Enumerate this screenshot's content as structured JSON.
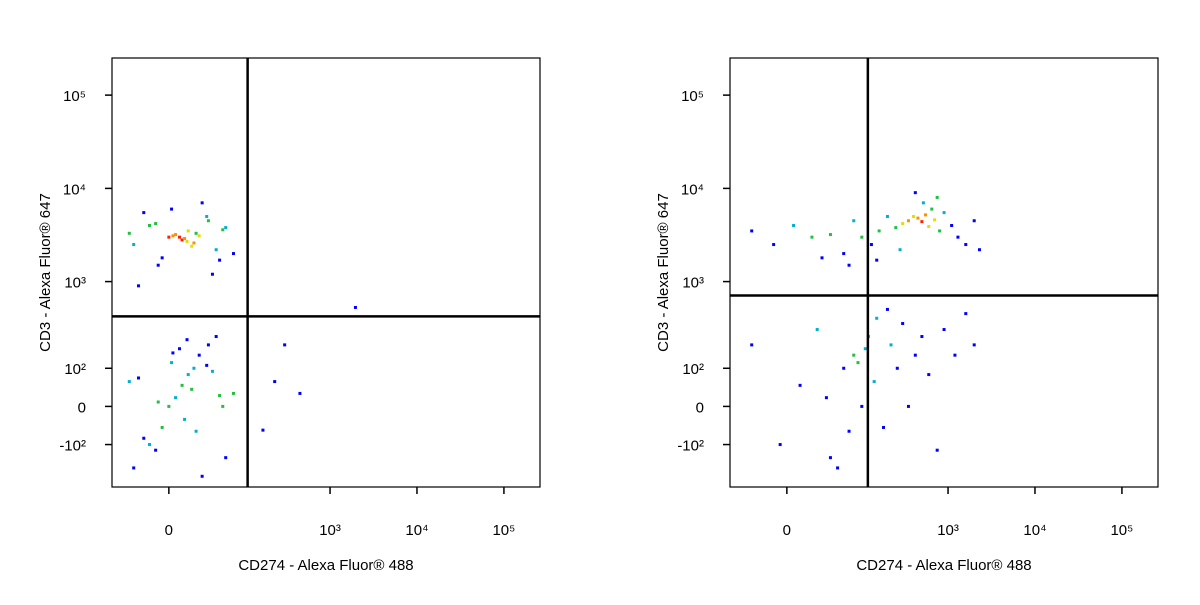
{
  "chart_data": [
    {
      "type": "scatter",
      "xlabel": "CD274 - Alexa Fluor® 488",
      "ylabel": "CD3 - Alexa Fluor® 647",
      "xscale": "biexponential",
      "yscale": "biexponential",
      "xlim": [
        -60,
        260000
      ],
      "ylim": [
        -330,
        250000
      ],
      "xticks": [
        0,
        {
          "value": 1000,
          "label": "10³"
        },
        {
          "value": 10000,
          "label": "10⁴"
        },
        {
          "value": 100000,
          "label": "10⁵"
        }
      ],
      "yticks": [
        {
          "value": 100000,
          "label": "10⁵"
        },
        {
          "value": 10000,
          "label": "10⁴"
        },
        {
          "value": 1000,
          "label": "10³"
        },
        {
          "value": 100,
          "label": "10²"
        },
        0,
        {
          "value": -100,
          "label": "-10²"
        }
      ],
      "quadrant_gate": {
        "x": 111,
        "y": 419
      },
      "x": [
        -30,
        -15,
        -5,
        0,
        5,
        10,
        15,
        20,
        25,
        35,
        45,
        60,
        75,
        -35,
        -20,
        -8,
        2,
        8,
        12,
        18,
        28,
        40,
        55,
        -25,
        -10,
        3,
        14,
        22,
        33,
        50,
        -30,
        -15,
        -5,
        0,
        5,
        10,
        15,
        20,
        25,
        35,
        45,
        60,
        75,
        -35,
        -20,
        -8,
        2,
        8,
        12,
        18,
        28,
        40,
        55,
        -25,
        -10,
        3,
        14,
        22,
        33,
        50,
        168,
        230,
        300,
        450,
        1960
      ],
      "values": [
        2500,
        4000,
        1800,
        3000,
        3200,
        2800,
        3500,
        2600,
        3100,
        4500,
        2200,
        3800,
        2000,
        3300,
        5500,
        1500,
        6000,
        3000,
        2900,
        2400,
        7000,
        1200,
        3600,
        900,
        4200,
        3100,
        2700,
        3300,
        5000,
        1700,
        -200,
        -100,
        -50,
        0,
        20,
        50,
        80,
        100,
        150,
        200,
        250,
        -150,
        30,
        60,
        -80,
        10,
        120,
        180,
        -30,
        40,
        -250,
        90,
        0,
        70,
        -120,
        160,
        230,
        -60,
        110,
        25,
        -57,
        60,
        200,
        30,
        525
      ],
      "colors": [
        "#00b0d0",
        "#20c040",
        "#0000ff",
        "#ff2000",
        "#ff9000",
        "#ff2000",
        "#e0e000",
        "#ff9000",
        "#e0e000",
        "#20c040",
        "#00b0d0",
        "#00b0d0",
        "#0000ff",
        "#20c040",
        "#0000ff",
        "#0000ff",
        "#0000ff",
        "#ff2000",
        "#ff9000",
        "#e0e000",
        "#0000ff",
        "#0000ff",
        "#20c040",
        "#0000ff",
        "#20c040",
        "#ff9000",
        "#e0e000",
        "#20c040",
        "#00b0d0",
        "#0000ff",
        "#0000ff",
        "#00b0d0",
        "#20c040",
        "#20c040",
        "#00b0d0",
        "#20c040",
        "#00b0d0",
        "#00b0d0",
        "#0000ff",
        "#0000ff",
        "#0000ff",
        "#0000ff",
        "#20c040",
        "#00b0d0",
        "#0000ff",
        "#20c040",
        "#00b0d0",
        "#0000ff",
        "#00b0d0",
        "#20c040",
        "#0000ff",
        "#00b0d0",
        "#20c040",
        "#0000ff",
        "#0000ff",
        "#0000ff",
        "#0000ff",
        "#00b0d0",
        "#0000ff",
        "#20c040",
        "#0000ff",
        "#0000ff",
        "#0000ff",
        "#0000ff",
        "#0000ff"
      ]
    },
    {
      "type": "scatter",
      "xlabel": "CD274 - Alexa Fluor® 488",
      "ylabel": "CD3 - Alexa Fluor® 647",
      "xscale": "biexponential",
      "yscale": "biexponential",
      "xlim": [
        -60,
        260000
      ],
      "ylim": [
        -330,
        250000
      ],
      "xticks": [
        0,
        {
          "value": 1000,
          "label": "10³"
        },
        {
          "value": 10000,
          "label": "10⁴"
        },
        {
          "value": 100000,
          "label": "10⁵"
        }
      ],
      "yticks": [
        {
          "value": 100000,
          "label": "10⁵"
        },
        {
          "value": 10000,
          "label": "10⁴"
        },
        {
          "value": 1000,
          "label": "10³"
        },
        {
          "value": 100,
          "label": "10²"
        },
        0,
        {
          "value": -100,
          "label": "-10²"
        }
      ],
      "quadrant_gate": {
        "x": 118,
        "y": 709
      },
      "x": [
        -30,
        -10,
        5,
        20,
        40,
        60,
        80,
        100,
        130,
        160,
        200,
        250,
        300,
        350,
        400,
        450,
        500,
        550,
        600,
        650,
        700,
        800,
        900,
        1100,
        1300,
        1600,
        2000,
        2300,
        30,
        70,
        150,
        280,
        420,
        520,
        750,
        -30,
        -5,
        10,
        25,
        40,
        60,
        80,
        100,
        120,
        150,
        180,
        220,
        260,
        300,
        350,
        420,
        500,
        600,
        750,
        900,
        1200,
        1600,
        2000,
        50,
        90,
        140,
        70,
        35,
        110,
        200
      ],
      "values": [
        3500,
        2500,
        4000,
        3000,
        3200,
        2000,
        4500,
        3000,
        2500,
        3500,
        5000,
        3800,
        4200,
        4500,
        5000,
        4800,
        4400,
        5200,
        3900,
        6000,
        4600,
        3500,
        5500,
        4000,
        3000,
        2500,
        4500,
        2200,
        1800,
        1500,
        1700,
        2200,
        9000,
        7000,
        8000,
        200,
        -100,
        50,
        300,
        -150,
        100,
        150,
        0,
        250,
        400,
        -50,
        200,
        100,
        350,
        0,
        150,
        250,
        80,
        -120,
        300,
        150,
        450,
        200,
        -200,
        120,
        60,
        -60,
        20,
        180,
        500
      ],
      "colors": [
        "#0000ff",
        "#0000ff",
        "#00b0d0",
        "#20c040",
        "#20c040",
        "#0000ff",
        "#00b0d0",
        "#20c040",
        "#0000ff",
        "#20c040",
        "#00b0d0",
        "#20c040",
        "#e0e000",
        "#ff9000",
        "#e0e000",
        "#ff9000",
        "#ff2000",
        "#ff9000",
        "#e0e000",
        "#20c040",
        "#e0e000",
        "#20c040",
        "#00b0d0",
        "#0000ff",
        "#0000ff",
        "#0000ff",
        "#0000ff",
        "#0000ff",
        "#0000ff",
        "#0000ff",
        "#0000ff",
        "#00b0d0",
        "#0000ff",
        "#00b0d0",
        "#20c040",
        "#0000ff",
        "#0000ff",
        "#0000ff",
        "#00b0d0",
        "#0000ff",
        "#0000ff",
        "#20c040",
        "#0000ff",
        "#20c040",
        "#00b0d0",
        "#0000ff",
        "#00b0d0",
        "#0000ff",
        "#0000ff",
        "#0000ff",
        "#0000ff",
        "#0000ff",
        "#0000ff",
        "#0000ff",
        "#0000ff",
        "#0000ff",
        "#0000ff",
        "#0000ff",
        "#0000ff",
        "#20c040",
        "#00b0d0",
        "#0000ff",
        "#0000ff",
        "#00b0d0",
        "#0000ff"
      ]
    }
  ]
}
